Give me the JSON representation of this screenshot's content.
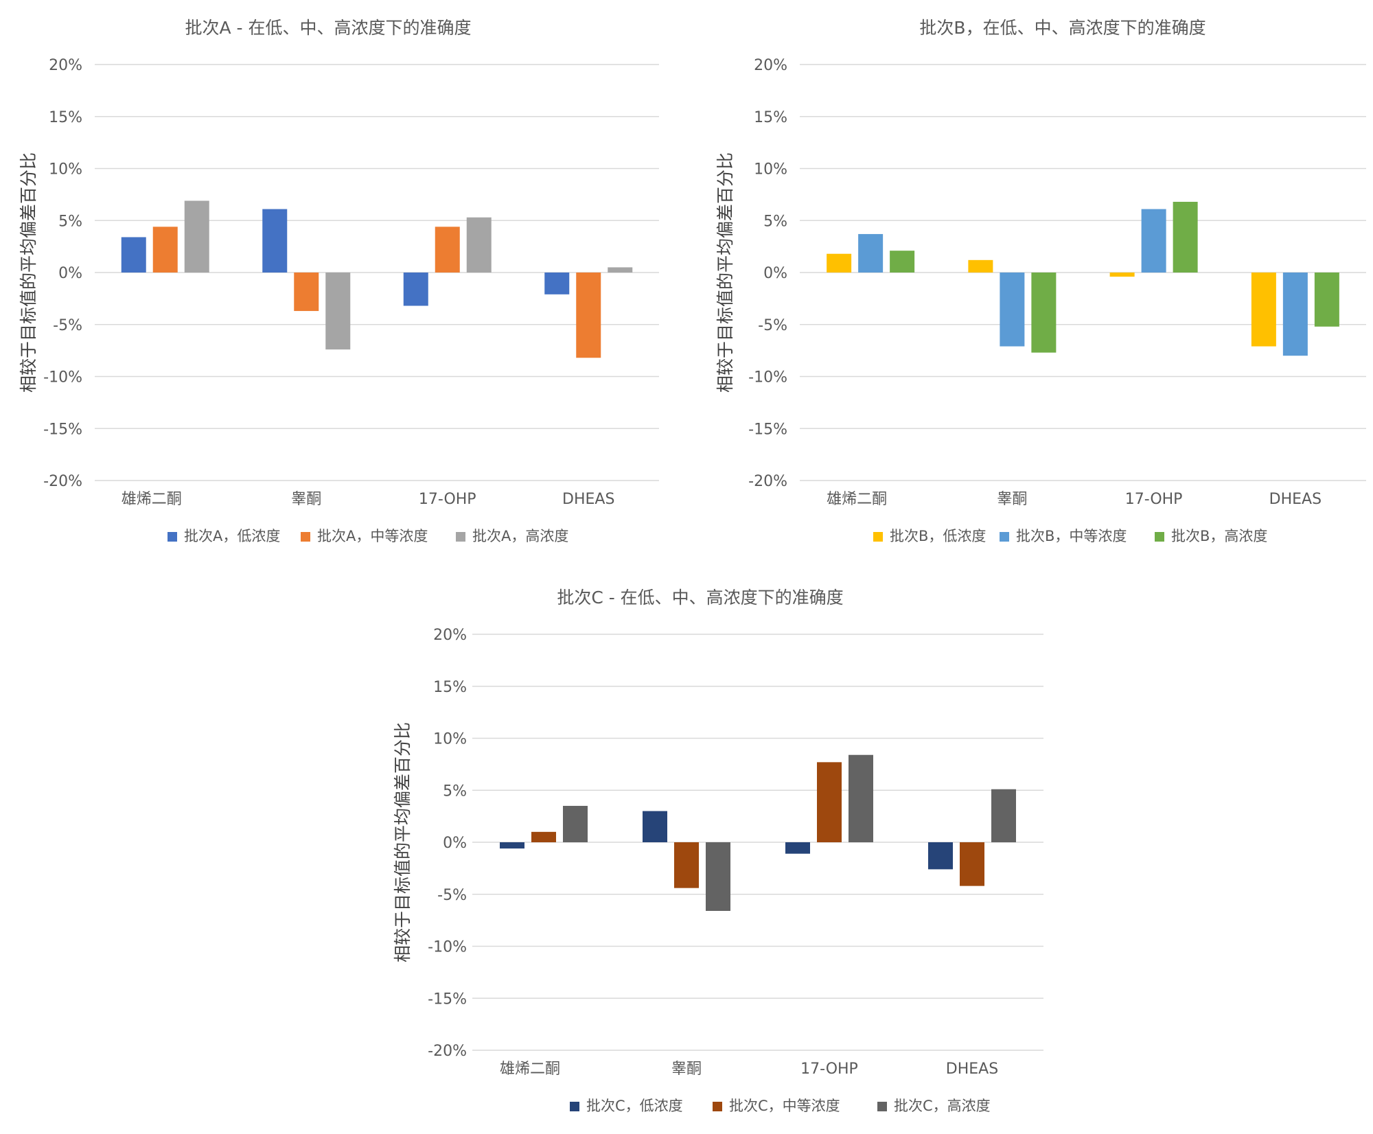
{
  "charts": [
    {
      "id": "a",
      "type": "bar",
      "title": "批次A - 在低、中、高浓度下的准确度",
      "ylabel": "相较于目标值的平均偏差百分比",
      "categories": [
        "雄烯二酮",
        "睾酮",
        "17-OHP",
        "DHEAS"
      ],
      "ylim": [
        -20,
        20
      ],
      "yticks": [
        "20%",
        "15%",
        "10%",
        "5%",
        "0%",
        "-5%",
        "-10%",
        "-15%",
        "-20%"
      ],
      "legend_position": "bottom",
      "series": [
        {
          "name": "批次A，低浓度",
          "color": "#4472c4",
          "values": [
            3.4,
            6.1,
            -3.2,
            -2.1
          ]
        },
        {
          "name": "批次A，中等浓度",
          "color": "#ed7d31",
          "values": [
            4.4,
            -3.7,
            4.4,
            -8.2
          ]
        },
        {
          "name": "批次A，高浓度",
          "color": "#a5a5a5",
          "values": [
            6.9,
            -7.4,
            5.3,
            0.5
          ]
        }
      ]
    },
    {
      "id": "b",
      "type": "bar",
      "title": "批次B，在低、中、高浓度下的准确度",
      "ylabel": "相较于目标值的平均偏差百分比",
      "categories": [
        "雄烯二酮",
        "睾酮",
        "17-OHP",
        "DHEAS"
      ],
      "ylim": [
        -20,
        20
      ],
      "yticks": [
        "20%",
        "15%",
        "10%",
        "5%",
        "0%",
        "-5%",
        "-10%",
        "-15%",
        "-20%"
      ],
      "legend_position": "bottom",
      "series": [
        {
          "name": "批次B，低浓度",
          "color": "#ffc000",
          "values": [
            1.8,
            1.2,
            -0.4,
            -7.1
          ]
        },
        {
          "name": "批次B，中等浓度",
          "color": "#5b9bd5",
          "values": [
            3.7,
            -7.1,
            6.1,
            -8.0
          ]
        },
        {
          "name": "批次B，高浓度",
          "color": "#70ad47",
          "values": [
            2.1,
            -7.7,
            6.8,
            -5.2
          ]
        }
      ]
    },
    {
      "id": "c",
      "type": "bar",
      "title": "批次C - 在低、中、高浓度下的准确度",
      "ylabel": "相较于目标值的平均偏差百分比",
      "categories": [
        "雄烯二酮",
        "睾酮",
        "17-OHP",
        "DHEAS"
      ],
      "ylim": [
        -20,
        20
      ],
      "yticks": [
        "20%",
        "15%",
        "10%",
        "5%",
        "0%",
        "-5%",
        "-10%",
        "-15%",
        "-20%"
      ],
      "legend_position": "bottom",
      "series": [
        {
          "name": "批次C，低浓度",
          "color": "#264478",
          "values": [
            -0.6,
            3.0,
            -1.1,
            -2.6
          ]
        },
        {
          "name": "批次C，中等浓度",
          "color": "#9e480e",
          "values": [
            1.0,
            -4.4,
            7.7,
            -4.2
          ]
        },
        {
          "name": "批次C，高浓度",
          "color": "#636363",
          "values": [
            3.5,
            -6.6,
            8.4,
            5.1
          ]
        }
      ]
    }
  ]
}
